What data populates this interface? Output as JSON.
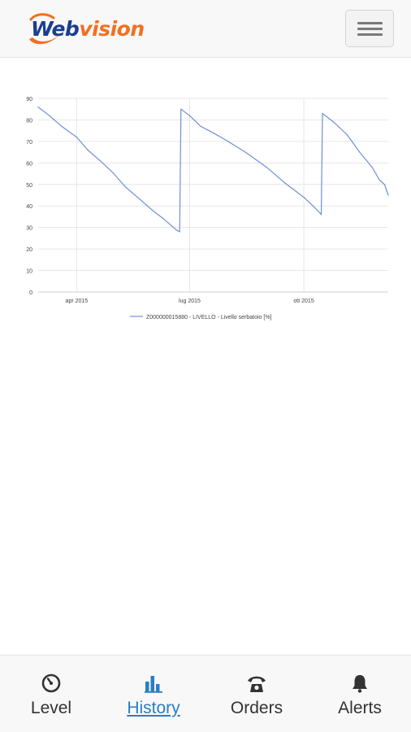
{
  "app": {
    "logo_text": "Webvision",
    "colors": {
      "brand_blue": "#1a3f8e",
      "brand_orange": "#f36f21",
      "active_tab": "#2a7ec6"
    }
  },
  "header": {
    "menu_icon": "hamburger-menu-icon"
  },
  "chart_data": {
    "type": "line",
    "y_ticks": [
      "0",
      "10",
      "20",
      "30",
      "40",
      "50",
      "60",
      "70",
      "80",
      "90"
    ],
    "ylim": [
      0,
      90
    ],
    "x_ticks": [
      "apr 2015",
      "lug 2015",
      "ott 2015"
    ],
    "xlim": [
      "2015-03-01",
      "2015-12-08"
    ],
    "grid": true,
    "legend_position": "bottom",
    "series": [
      {
        "name": "Z000000015880 - LIVELLO - Livello serbatoio [%]",
        "color": "#6f8fd6",
        "points": [
          [
            "2015-03-01",
            86
          ],
          [
            "2015-03-10",
            82
          ],
          [
            "2015-03-20",
            77
          ],
          [
            "2015-04-01",
            72
          ],
          [
            "2015-04-10",
            66
          ],
          [
            "2015-04-20",
            61
          ],
          [
            "2015-05-01",
            55
          ],
          [
            "2015-05-10",
            49
          ],
          [
            "2015-05-20",
            44
          ],
          [
            "2015-06-01",
            38
          ],
          [
            "2015-06-10",
            34
          ],
          [
            "2015-06-20",
            29
          ],
          [
            "2015-06-23",
            28
          ],
          [
            "2015-06-24",
            85
          ],
          [
            "2015-07-01",
            82
          ],
          [
            "2015-07-10",
            77
          ],
          [
            "2015-07-20",
            74
          ],
          [
            "2015-08-01",
            70
          ],
          [
            "2015-08-15",
            65
          ],
          [
            "2015-09-01",
            58
          ],
          [
            "2015-09-15",
            51
          ],
          [
            "2015-10-01",
            44
          ],
          [
            "2015-10-12",
            38
          ],
          [
            "2015-10-15",
            36
          ],
          [
            "2015-10-16",
            83
          ],
          [
            "2015-10-25",
            79
          ],
          [
            "2015-11-05",
            73
          ],
          [
            "2015-11-15",
            65
          ],
          [
            "2015-11-25",
            58
          ],
          [
            "2015-12-01",
            52
          ],
          [
            "2015-12-05",
            50
          ],
          [
            "2015-12-08",
            45
          ]
        ]
      }
    ]
  },
  "nav": {
    "items": [
      {
        "label": "Level",
        "icon": "gauge-icon",
        "active": false
      },
      {
        "label": "History",
        "icon": "bar-chart-icon",
        "active": true
      },
      {
        "label": "Orders",
        "icon": "phone-icon",
        "active": false
      },
      {
        "label": "Alerts",
        "icon": "bell-icon",
        "active": false
      }
    ]
  }
}
